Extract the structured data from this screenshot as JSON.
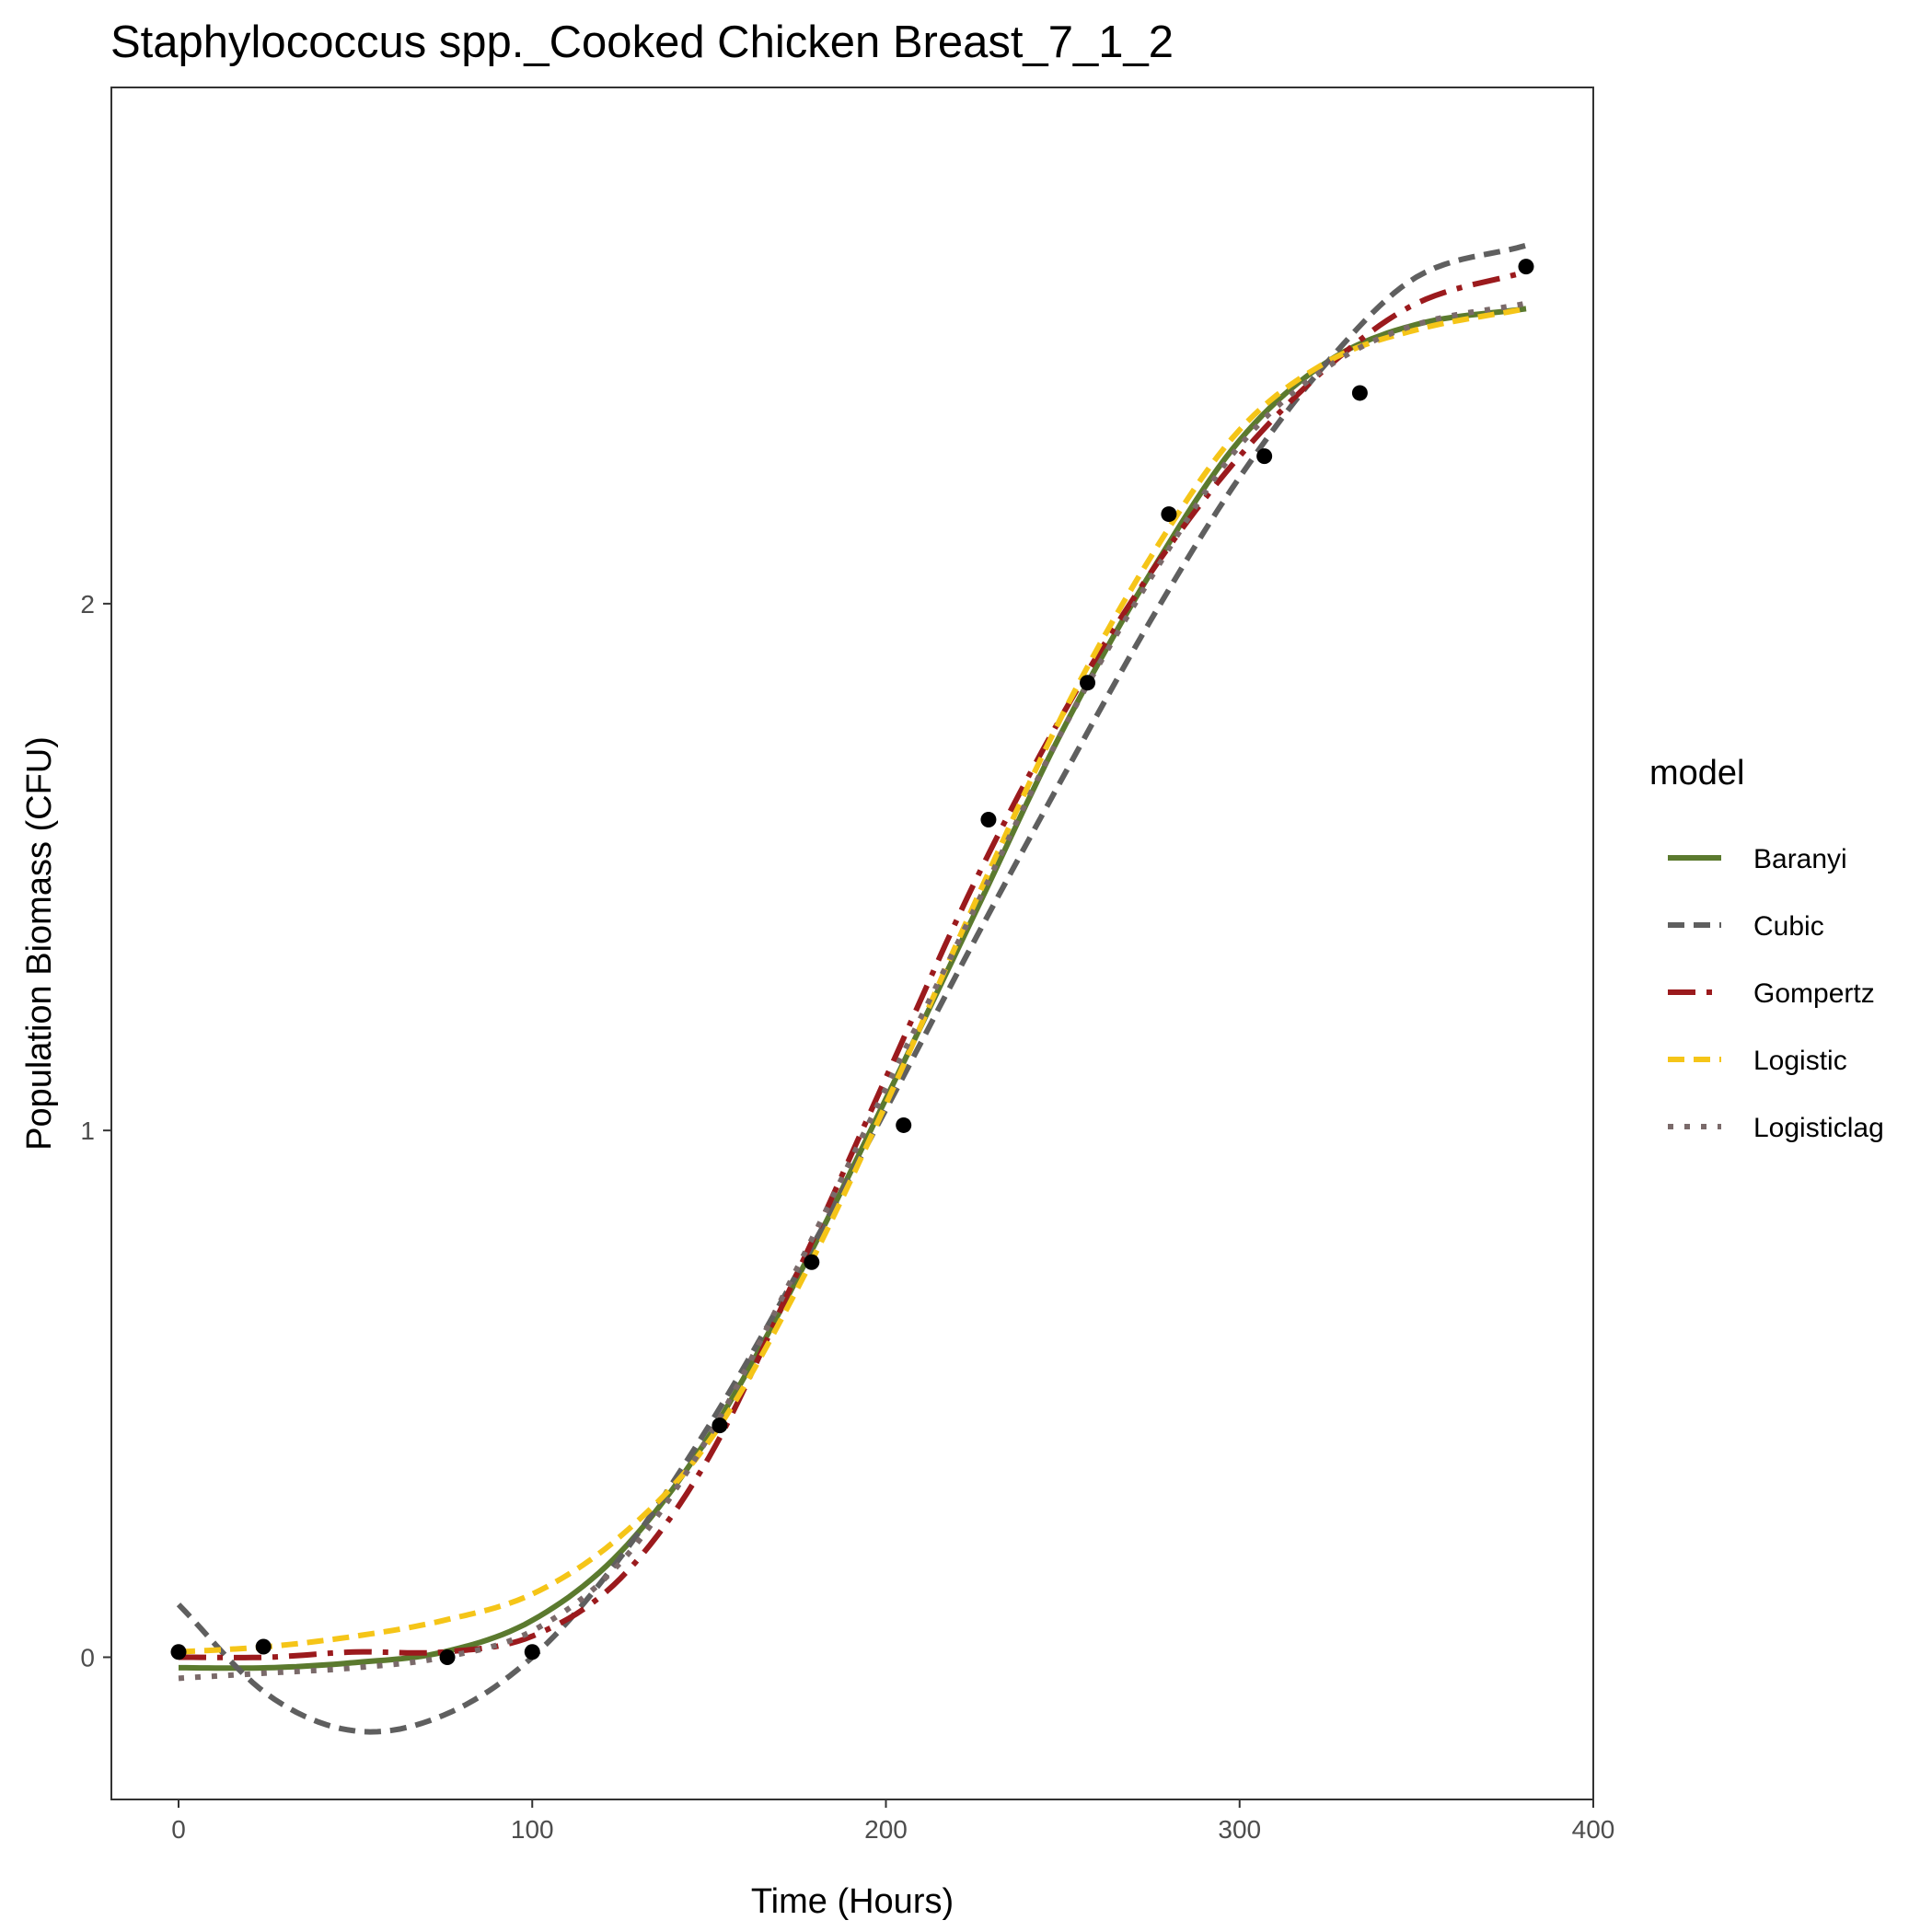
{
  "chart_data": {
    "type": "line",
    "title": "Staphylococcus spp._Cooked Chicken Breast_7_1_2",
    "xlabel": "Time (Hours)",
    "ylabel": "Population Biomass (CFU)",
    "xlim": [
      -19,
      400
    ],
    "ylim": [
      -0.27,
      2.98
    ],
    "x_ticks": [
      0,
      100,
      200,
      300,
      400
    ],
    "x_tick_labels": [
      "0",
      "100",
      "200",
      "300",
      "400"
    ],
    "y_ticks": [
      0,
      1,
      2
    ],
    "y_tick_labels": [
      "0",
      "1",
      "2"
    ],
    "grid": false,
    "legend": {
      "title": "model",
      "position": "right"
    },
    "observations": {
      "x": [
        0,
        24,
        76,
        100,
        153,
        179,
        205,
        229,
        257,
        280,
        307,
        334,
        381
      ],
      "y": [
        0.01,
        0.02,
        0.0,
        0.01,
        0.44,
        0.75,
        1.01,
        1.59,
        1.85,
        2.17,
        2.28,
        2.4,
        2.64
      ]
    },
    "series": [
      {
        "name": "Baranyi",
        "style": "solid",
        "color": "#5b7a2e",
        "x": [
          0,
          25,
          50,
          75,
          100,
          125,
          150,
          175,
          200,
          225,
          250,
          275,
          300,
          325,
          350,
          381
        ],
        "y": [
          -0.02,
          -0.02,
          -0.01,
          0.01,
          0.07,
          0.2,
          0.42,
          0.72,
          1.06,
          1.41,
          1.76,
          2.06,
          2.31,
          2.46,
          2.53,
          2.56
        ]
      },
      {
        "name": "Cubic",
        "style": "dashed",
        "color": "#5f5f5f",
        "x": [
          0,
          25,
          50,
          75,
          100,
          125,
          150,
          175,
          200,
          225,
          250,
          275,
          300,
          325,
          350,
          381
        ],
        "y": [
          0.1,
          -0.07,
          -0.14,
          -0.11,
          0.0,
          0.19,
          0.44,
          0.73,
          1.04,
          1.36,
          1.67,
          1.97,
          2.24,
          2.46,
          2.62,
          2.68
        ]
      },
      {
        "name": "Gompertz",
        "style": "longdash",
        "color": "#9b1a1d",
        "x": [
          0,
          25,
          50,
          75,
          100,
          125,
          150,
          175,
          200,
          225,
          250,
          275,
          300,
          325,
          350,
          381
        ],
        "y": [
          0.0,
          0.0,
          0.01,
          0.01,
          0.04,
          0.15,
          0.38,
          0.73,
          1.1,
          1.47,
          1.79,
          2.06,
          2.28,
          2.45,
          2.57,
          2.63
        ]
      },
      {
        "name": "Logistic",
        "style": "dashed",
        "color": "#f5c518",
        "x": [
          0,
          25,
          50,
          75,
          100,
          125,
          150,
          175,
          200,
          225,
          250,
          275,
          300,
          325,
          350,
          381
        ],
        "y": [
          0.01,
          0.02,
          0.04,
          0.07,
          0.12,
          0.23,
          0.41,
          0.7,
          1.05,
          1.43,
          1.79,
          2.09,
          2.33,
          2.46,
          2.52,
          2.56
        ]
      },
      {
        "name": "Logisticlag",
        "style": "dotted",
        "color": "#7a6a6a",
        "x": [
          0,
          25,
          50,
          75,
          100,
          125,
          150,
          175,
          200,
          225,
          250,
          275,
          300,
          325,
          350,
          381
        ],
        "y": [
          -0.04,
          -0.03,
          -0.02,
          0.0,
          0.05,
          0.18,
          0.42,
          0.74,
          1.08,
          1.42,
          1.76,
          2.05,
          2.3,
          2.45,
          2.53,
          2.57
        ]
      }
    ]
  }
}
